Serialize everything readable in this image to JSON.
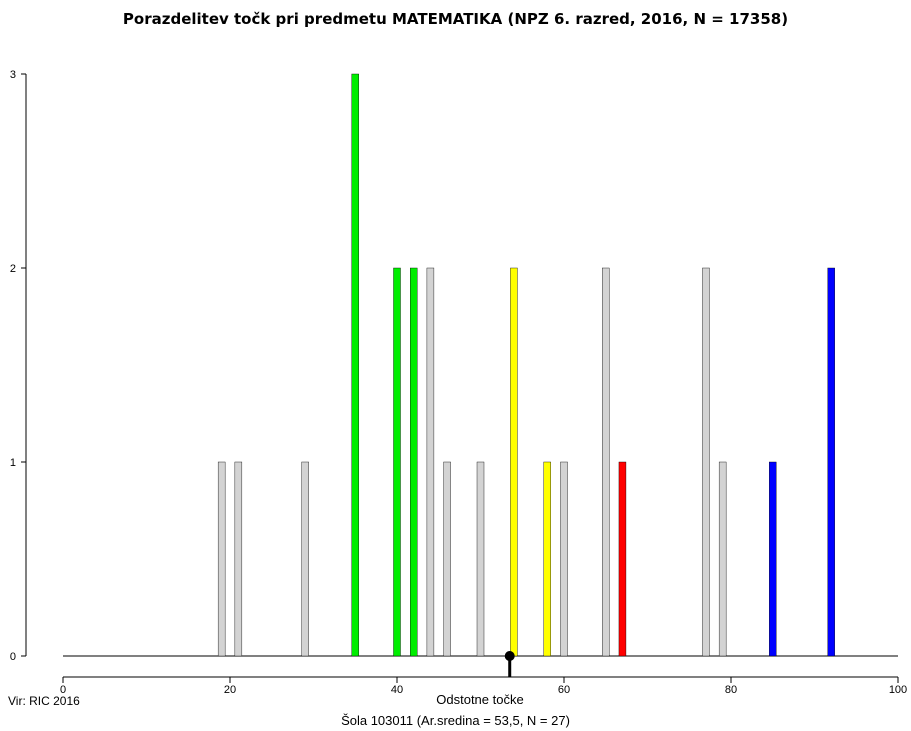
{
  "chart_data": {
    "type": "bar",
    "title": "Porazdelitev točk pri predmetu MATEMATIKA (NPZ 6. razred, 2016, N = 17358)",
    "xlabel": "Odstotne točke",
    "ylabel": "",
    "xlim": [
      0,
      100
    ],
    "ylim": [
      0,
      3
    ],
    "x_ticks": [
      0,
      20,
      40,
      60,
      80,
      100
    ],
    "y_ticks": [
      0,
      1,
      2,
      3
    ],
    "grid": false,
    "colors": {
      "gray": "#d3d3d3",
      "green": "#00ee00",
      "yellow": "#ffff00",
      "red": "#ff0000",
      "blue": "#0000ff",
      "mean_marker": "#000000"
    },
    "bars": [
      {
        "x": 19,
        "count": 1,
        "color": "gray"
      },
      {
        "x": 21,
        "count": 1,
        "color": "gray"
      },
      {
        "x": 29,
        "count": 1,
        "color": "gray"
      },
      {
        "x": 35,
        "count": 3,
        "color": "green"
      },
      {
        "x": 40,
        "count": 2,
        "color": "green"
      },
      {
        "x": 42,
        "count": 2,
        "color": "green"
      },
      {
        "x": 44,
        "count": 2,
        "color": "gray"
      },
      {
        "x": 46,
        "count": 1,
        "color": "gray"
      },
      {
        "x": 50,
        "count": 1,
        "color": "gray"
      },
      {
        "x": 54,
        "count": 2,
        "color": "yellow"
      },
      {
        "x": 58,
        "count": 1,
        "color": "yellow"
      },
      {
        "x": 60,
        "count": 1,
        "color": "gray"
      },
      {
        "x": 65,
        "count": 2,
        "color": "gray"
      },
      {
        "x": 67,
        "count": 1,
        "color": "red"
      },
      {
        "x": 77,
        "count": 2,
        "color": "gray"
      },
      {
        "x": 79,
        "count": 1,
        "color": "gray"
      },
      {
        "x": 85,
        "count": 1,
        "color": "blue"
      },
      {
        "x": 92,
        "count": 2,
        "color": "blue"
      }
    ],
    "mean_marker_x": 53.5
  },
  "source": "Vir: RIC 2016",
  "school_summary": "Šola 103011 (Ar.sredina = 53,5, N = 27)"
}
